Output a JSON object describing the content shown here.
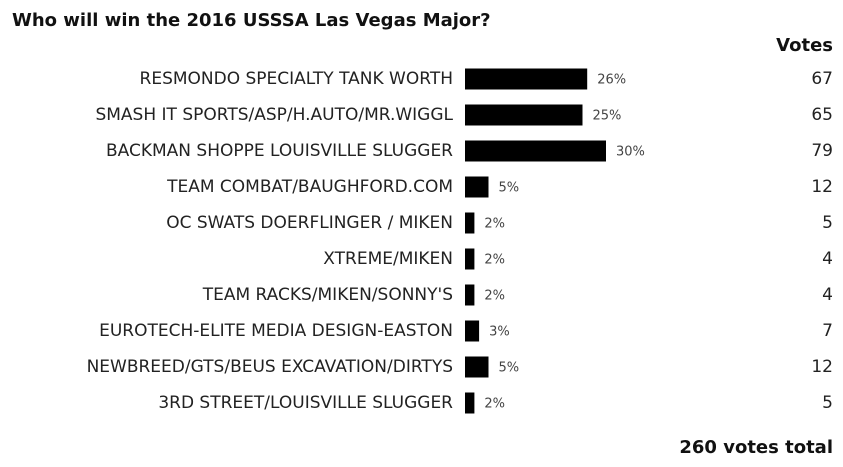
{
  "chart_data": {
    "type": "bar",
    "title": "Who will win the 2016 USSSA Las Vegas Major?",
    "votes_header": "Votes",
    "categories": [
      "RESMONDO SPECIALTY TANK WORTH",
      "SMASH IT SPORTS/ASP/H.AUTO/MR.WIGGL",
      "BACKMAN SHOPPE LOUISVILLE SLUGGER",
      "TEAM COMBAT/BAUGHFORD.COM",
      "OC SWATS DOERFLINGER / MIKEN",
      "XTREME/MIKEN",
      "TEAM RACKS/MIKEN/SONNY'S",
      "EUROTECH-ELITE MEDIA DESIGN-EASTON",
      "NEWBREED/GTS/BEUS EXCAVATION/DIRTYS",
      "3RD STREET/LOUISVILLE SLUGGER"
    ],
    "values": [
      26,
      25,
      30,
      5,
      2,
      2,
      2,
      3,
      5,
      2
    ],
    "value_labels": [
      "26%",
      "25%",
      "30%",
      "5%",
      "2%",
      "2%",
      "2%",
      "3%",
      "5%",
      "2%"
    ],
    "votes": [
      67,
      65,
      79,
      12,
      5,
      4,
      4,
      7,
      12,
      5
    ],
    "color": "#000000",
    "footer": "260 votes total"
  }
}
